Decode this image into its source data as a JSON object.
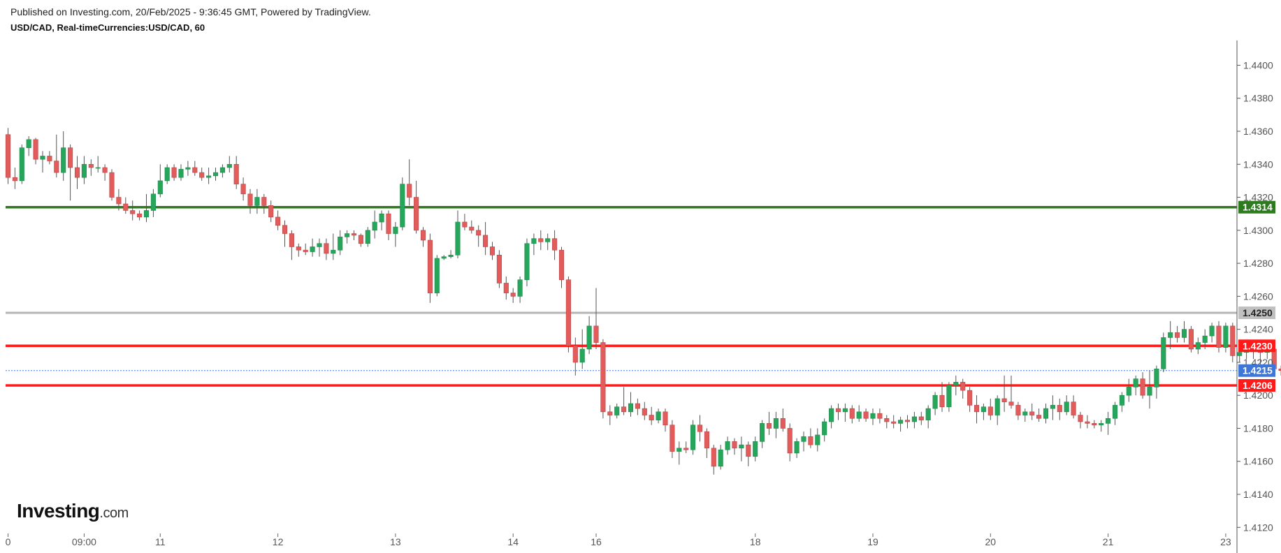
{
  "header": {
    "published": "Published on Investing.com, 20/Feb/2025 - 9:36:45 GMT, Powered by TradingView.",
    "symbol": "USD/CAD, Real-timeCurrencies:USD/CAD, 60"
  },
  "logo": {
    "brand": "Investing",
    "suffix": ".com"
  },
  "colors": {
    "up": "#26a65b",
    "down": "#e25c5c",
    "wick": "#555555",
    "support_green": "#2d7a1f",
    "gray_level": "#b5b5b5",
    "red_level": "#ff1a1a",
    "current": "#3d78d8"
  },
  "chart_data": {
    "type": "candlestick",
    "interval": "60",
    "y_axis": {
      "range": [
        1.4118,
        1.4415
      ],
      "ticks": [
        "1.4400",
        "1.4380",
        "1.4360",
        "1.4340",
        "1.4320",
        "1.4300",
        "1.4280",
        "1.4260",
        "1.4240",
        "1.4220",
        "1.4200",
        "1.4180",
        "1.4160",
        "1.4140",
        "1.4120"
      ]
    },
    "x_axis": {
      "ticks": [
        "0",
        "09:00",
        "11",
        "12",
        "13",
        "14",
        "16",
        "18",
        "19",
        "20",
        "21",
        "23"
      ],
      "tick_slots": [
        0,
        11,
        22,
        39,
        56,
        73,
        85,
        108,
        125,
        142,
        159,
        176
      ]
    },
    "horizontal_levels": [
      {
        "value": 1.4314,
        "label": "1.4314",
        "color": "#2d7a1f",
        "style": "solid"
      },
      {
        "value": 1.425,
        "label": "1.4250",
        "color": "#b5b5b5",
        "style": "solid"
      },
      {
        "value": 1.423,
        "label": "1.4230",
        "color": "#ff1a1a",
        "style": "solid"
      },
      {
        "value": 1.4206,
        "label": "1.4206",
        "color": "#ff1a1a",
        "style": "solid"
      },
      {
        "value": 1.4215,
        "label": "1.4215",
        "color": "#3d78d8",
        "style": "dotted"
      }
    ],
    "candles": [
      [
        1.4358,
        1.4362,
        1.4328,
        1.4332
      ],
      [
        1.4332,
        1.4338,
        1.4325,
        1.433
      ],
      [
        1.433,
        1.4352,
        1.4328,
        1.435
      ],
      [
        1.435,
        1.4357,
        1.4345,
        1.4355
      ],
      [
        1.4355,
        1.4356,
        1.434,
        1.4343
      ],
      [
        1.4343,
        1.4348,
        1.4335,
        1.4345
      ],
      [
        1.4345,
        1.4348,
        1.434,
        1.4342
      ],
      [
        1.4342,
        1.4358,
        1.4332,
        1.4335
      ],
      [
        1.4335,
        1.436,
        1.433,
        1.435
      ],
      [
        1.435,
        1.4352,
        1.4318,
        1.4338
      ],
      [
        1.4338,
        1.4345,
        1.4325,
        1.4332
      ],
      [
        1.4332,
        1.4345,
        1.4328,
        1.434
      ],
      [
        1.434,
        1.4343,
        1.4333,
        1.4338
      ],
      [
        1.4338,
        1.4345,
        1.4335,
        1.4338
      ],
      [
        1.4338,
        1.434,
        1.433,
        1.4335
      ],
      [
        1.4335,
        1.4337,
        1.4318,
        1.432
      ],
      [
        1.432,
        1.4325,
        1.4312,
        1.4316
      ],
      [
        1.4316,
        1.432,
        1.431,
        1.4312
      ],
      [
        1.4312,
        1.4318,
        1.4306,
        1.431
      ],
      [
        1.431,
        1.4312,
        1.4306,
        1.4308
      ],
      [
        1.4308,
        1.4322,
        1.4305,
        1.4312
      ],
      [
        1.4312,
        1.4325,
        1.4308,
        1.4322
      ],
      [
        1.4322,
        1.434,
        1.432,
        1.433
      ],
      [
        1.433,
        1.434,
        1.4328,
        1.4338
      ],
      [
        1.4338,
        1.434,
        1.433,
        1.4332
      ],
      [
        1.4332,
        1.434,
        1.433,
        1.4337
      ],
      [
        1.4337,
        1.4342,
        1.4333,
        1.4338
      ],
      [
        1.4338,
        1.4342,
        1.4333,
        1.4335
      ],
      [
        1.4335,
        1.4338,
        1.433,
        1.4332
      ],
      [
        1.4332,
        1.4338,
        1.4328,
        1.4333
      ],
      [
        1.4333,
        1.4338,
        1.433,
        1.4335
      ],
      [
        1.4335,
        1.434,
        1.4332,
        1.4338
      ],
      [
        1.4338,
        1.4345,
        1.4335,
        1.434
      ],
      [
        1.434,
        1.4345,
        1.4325,
        1.4328
      ],
      [
        1.4328,
        1.4332,
        1.4318,
        1.4322
      ],
      [
        1.4322,
        1.4325,
        1.431,
        1.4315
      ],
      [
        1.4315,
        1.4325,
        1.431,
        1.432
      ],
      [
        1.432,
        1.4322,
        1.431,
        1.4315
      ],
      [
        1.4315,
        1.4318,
        1.4305,
        1.4308
      ],
      [
        1.4308,
        1.4312,
        1.43,
        1.4303
      ],
      [
        1.4303,
        1.4306,
        1.429,
        1.4298
      ],
      [
        1.4298,
        1.43,
        1.4282,
        1.429
      ],
      [
        1.429,
        1.4292,
        1.4284,
        1.4288
      ],
      [
        1.4288,
        1.4292,
        1.4285,
        1.4287
      ],
      [
        1.4287,
        1.4295,
        1.4284,
        1.429
      ],
      [
        1.429,
        1.4295,
        1.4284,
        1.4292
      ],
      [
        1.4292,
        1.4295,
        1.4282,
        1.4286
      ],
      [
        1.4286,
        1.4298,
        1.4282,
        1.4288
      ],
      [
        1.4288,
        1.43,
        1.4285,
        1.4296
      ],
      [
        1.4296,
        1.43,
        1.4292,
        1.4298
      ],
      [
        1.4298,
        1.43,
        1.4294,
        1.4297
      ],
      [
        1.4297,
        1.4298,
        1.429,
        1.4292
      ],
      [
        1.4292,
        1.4302,
        1.429,
        1.43
      ],
      [
        1.43,
        1.4312,
        1.4295,
        1.4305
      ],
      [
        1.4305,
        1.4312,
        1.43,
        1.431
      ],
      [
        1.431,
        1.4312,
        1.4294,
        1.4298
      ],
      [
        1.4298,
        1.4305,
        1.429,
        1.4302
      ],
      [
        1.4302,
        1.4332,
        1.43,
        1.4328
      ],
      [
        1.4328,
        1.4343,
        1.4315,
        1.432
      ],
      [
        1.432,
        1.433,
        1.4298,
        1.43
      ],
      [
        1.43,
        1.4302,
        1.429,
        1.4294
      ],
      [
        1.4294,
        1.4298,
        1.4256,
        1.4262
      ],
      [
        1.4262,
        1.4285,
        1.426,
        1.4283
      ],
      [
        1.4283,
        1.4285,
        1.4282,
        1.4284
      ],
      [
        1.4284,
        1.4288,
        1.4283,
        1.4285
      ],
      [
        1.4285,
        1.4312,
        1.4283,
        1.4305
      ],
      [
        1.4305,
        1.431,
        1.43,
        1.4302
      ],
      [
        1.4302,
        1.4306,
        1.4298,
        1.43
      ],
      [
        1.43,
        1.4303,
        1.429,
        1.4297
      ],
      [
        1.4297,
        1.4305,
        1.4285,
        1.429
      ],
      [
        1.429,
        1.4293,
        1.4282,
        1.4285
      ],
      [
        1.4285,
        1.4288,
        1.4265,
        1.4268
      ],
      [
        1.4268,
        1.4272,
        1.4258,
        1.4262
      ],
      [
        1.4262,
        1.4265,
        1.4256,
        1.426
      ],
      [
        1.426,
        1.4272,
        1.4256,
        1.427
      ],
      [
        1.427,
        1.4295,
        1.4266,
        1.4292
      ],
      [
        1.4292,
        1.4298,
        1.4285,
        1.4295
      ],
      [
        1.4295,
        1.43,
        1.4288,
        1.4293
      ],
      [
        1.4293,
        1.4298,
        1.4288,
        1.4295
      ],
      [
        1.4295,
        1.43,
        1.4282,
        1.4288
      ],
      [
        1.4288,
        1.429,
        1.4265,
        1.427
      ],
      [
        1.427,
        1.4272,
        1.4226,
        1.423
      ],
      [
        1.423,
        1.4235,
        1.4212,
        1.422
      ],
      [
        1.422,
        1.424,
        1.4216,
        1.4228
      ],
      [
        1.4228,
        1.4248,
        1.4225,
        1.4242
      ],
      [
        1.4242,
        1.4265,
        1.4228,
        1.4232
      ],
      [
        1.4232,
        1.4234,
        1.4186,
        1.419
      ],
      [
        1.419,
        1.4194,
        1.4182,
        1.4188
      ],
      [
        1.4188,
        1.4195,
        1.4186,
        1.4193
      ],
      [
        1.4193,
        1.4205,
        1.4188,
        1.419
      ],
      [
        1.419,
        1.4202,
        1.4187,
        1.4195
      ],
      [
        1.4195,
        1.4198,
        1.4188,
        1.4192
      ],
      [
        1.4192,
        1.4196,
        1.4185,
        1.4188
      ],
      [
        1.4188,
        1.4193,
        1.4182,
        1.4185
      ],
      [
        1.4185,
        1.4192,
        1.4183,
        1.419
      ],
      [
        1.419,
        1.4192,
        1.4178,
        1.4182
      ],
      [
        1.4182,
        1.4185,
        1.4162,
        1.4166
      ],
      [
        1.4166,
        1.4172,
        1.4158,
        1.4168
      ],
      [
        1.4168,
        1.4172,
        1.4165,
        1.4167
      ],
      [
        1.4167,
        1.4185,
        1.4164,
        1.4182
      ],
      [
        1.4182,
        1.4188,
        1.4172,
        1.4178
      ],
      [
        1.4178,
        1.418,
        1.4162,
        1.4168
      ],
      [
        1.4168,
        1.417,
        1.4152,
        1.4157
      ],
      [
        1.4157,
        1.417,
        1.4155,
        1.4167
      ],
      [
        1.4167,
        1.4175,
        1.4164,
        1.4172
      ],
      [
        1.4172,
        1.4174,
        1.4164,
        1.4168
      ],
      [
        1.4168,
        1.4175,
        1.416,
        1.417
      ],
      [
        1.417,
        1.4172,
        1.4157,
        1.4163
      ],
      [
        1.4163,
        1.4175,
        1.416,
        1.4172
      ],
      [
        1.4172,
        1.4185,
        1.4168,
        1.4183
      ],
      [
        1.4183,
        1.419,
        1.4176,
        1.418
      ],
      [
        1.418,
        1.419,
        1.4174,
        1.4186
      ],
      [
        1.4186,
        1.4192,
        1.4178,
        1.418
      ],
      [
        1.418,
        1.4183,
        1.416,
        1.4165
      ],
      [
        1.4165,
        1.4174,
        1.4162,
        1.4172
      ],
      [
        1.4172,
        1.4178,
        1.4166,
        1.4175
      ],
      [
        1.4175,
        1.418,
        1.4168,
        1.417
      ],
      [
        1.417,
        1.418,
        1.4166,
        1.4176
      ],
      [
        1.4176,
        1.4186,
        1.4172,
        1.4184
      ],
      [
        1.4184,
        1.4194,
        1.418,
        1.4192
      ],
      [
        1.4192,
        1.4195,
        1.4185,
        1.419
      ],
      [
        1.419,
        1.4195,
        1.4184,
        1.4192
      ],
      [
        1.4192,
        1.4194,
        1.4183,
        1.4186
      ],
      [
        1.4186,
        1.4194,
        1.4184,
        1.419
      ],
      [
        1.419,
        1.4192,
        1.4184,
        1.4186
      ],
      [
        1.4186,
        1.4192,
        1.4182,
        1.4189
      ],
      [
        1.4189,
        1.4192,
        1.4183,
        1.4186
      ],
      [
        1.4186,
        1.4188,
        1.418,
        1.4184
      ],
      [
        1.4184,
        1.4188,
        1.418,
        1.4183
      ],
      [
        1.4183,
        1.4187,
        1.4178,
        1.4185
      ],
      [
        1.4185,
        1.4188,
        1.418,
        1.4184
      ],
      [
        1.4184,
        1.419,
        1.418,
        1.4187
      ],
      [
        1.4187,
        1.419,
        1.4182,
        1.4185
      ],
      [
        1.4185,
        1.4194,
        1.418,
        1.4192
      ],
      [
        1.4192,
        1.4202,
        1.4188,
        1.42
      ],
      [
        1.42,
        1.4208,
        1.419,
        1.4193
      ],
      [
        1.4193,
        1.4208,
        1.419,
        1.4206
      ],
      [
        1.4206,
        1.4212,
        1.42,
        1.4208
      ],
      [
        1.4208,
        1.421,
        1.4198,
        1.4203
      ],
      [
        1.4203,
        1.4205,
        1.419,
        1.4194
      ],
      [
        1.4194,
        1.42,
        1.4183,
        1.419
      ],
      [
        1.419,
        1.4195,
        1.4185,
        1.4193
      ],
      [
        1.4193,
        1.4198,
        1.4185,
        1.4188
      ],
      [
        1.4188,
        1.42,
        1.4182,
        1.4198
      ],
      [
        1.4198,
        1.4212,
        1.419,
        1.4196
      ],
      [
        1.4196,
        1.4212,
        1.4192,
        1.4194
      ],
      [
        1.4194,
        1.4196,
        1.4185,
        1.4188
      ],
      [
        1.4188,
        1.4192,
        1.4184,
        1.419
      ],
      [
        1.419,
        1.4195,
        1.4185,
        1.4188
      ],
      [
        1.4188,
        1.4192,
        1.4184,
        1.4186
      ],
      [
        1.4186,
        1.4195,
        1.4183,
        1.4192
      ],
      [
        1.4192,
        1.42,
        1.4185,
        1.4194
      ],
      [
        1.4194,
        1.4198,
        1.4185,
        1.419
      ],
      [
        1.419,
        1.42,
        1.4188,
        1.4196
      ],
      [
        1.4196,
        1.42,
        1.4186,
        1.4188
      ],
      [
        1.4188,
        1.419,
        1.418,
        1.4184
      ],
      [
        1.4184,
        1.4188,
        1.418,
        1.4183
      ],
      [
        1.4183,
        1.4185,
        1.418,
        1.4182
      ],
      [
        1.4182,
        1.4185,
        1.4178,
        1.4183
      ],
      [
        1.4183,
        1.419,
        1.4176,
        1.4186
      ],
      [
        1.4186,
        1.4196,
        1.4182,
        1.4194
      ],
      [
        1.4194,
        1.4202,
        1.419,
        1.42
      ],
      [
        1.42,
        1.421,
        1.4196,
        1.4205
      ],
      [
        1.4205,
        1.4212,
        1.42,
        1.421
      ],
      [
        1.421,
        1.4214,
        1.4198,
        1.42
      ],
      [
        1.42,
        1.4215,
        1.4192,
        1.4205
      ],
      [
        1.4205,
        1.4218,
        1.4198,
        1.4216
      ],
      [
        1.4216,
        1.4238,
        1.4214,
        1.4235
      ],
      [
        1.4235,
        1.4245,
        1.4228,
        1.4238
      ],
      [
        1.4238,
        1.4242,
        1.4232,
        1.4235
      ],
      [
        1.4235,
        1.4245,
        1.4232,
        1.424
      ],
      [
        1.424,
        1.4242,
        1.4226,
        1.4228
      ],
      [
        1.4228,
        1.4235,
        1.4225,
        1.4232
      ],
      [
        1.4232,
        1.424,
        1.4228,
        1.4236
      ],
      [
        1.4236,
        1.4244,
        1.4232,
        1.4242
      ],
      [
        1.4242,
        1.4245,
        1.4226,
        1.4229
      ],
      [
        1.4229,
        1.4244,
        1.4226,
        1.4242
      ],
      [
        1.4242,
        1.4244,
        1.422,
        1.4224
      ],
      [
        1.4224,
        1.423,
        1.422,
        1.4226
      ],
      [
        1.4226,
        1.4229,
        1.4222,
        1.4227
      ],
      [
        1.4227,
        1.423,
        1.4222,
        1.4228
      ],
      [
        1.4228,
        1.423,
        1.4218,
        1.4226
      ],
      [
        1.4226,
        1.4232,
        1.4222,
        1.4228
      ],
      [
        1.4228,
        1.423,
        1.4214,
        1.4216
      ],
      [
        1.4216,
        1.4218,
        1.4212,
        1.4215
      ]
    ]
  }
}
